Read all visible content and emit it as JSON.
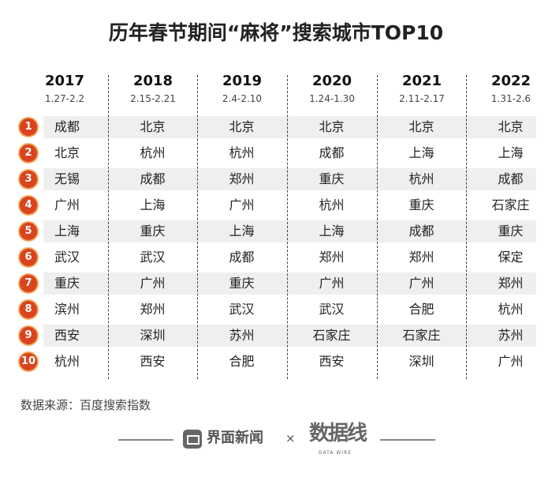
{
  "title": "历年春节期间“麻将”搜索城市TOP10",
  "columns": [
    {
      "year": "2017",
      "dates": "1.27-2.2",
      "cities": [
        "成都",
        "北京",
        "无锡",
        "广州",
        "上海",
        "武汉",
        "重庆",
        "滨州",
        "西安",
        "杭州"
      ]
    },
    {
      "year": "2018",
      "dates": "2.15-2.21",
      "cities": [
        "北京",
        "杭州",
        "成都",
        "上海",
        "重庆",
        "武汉",
        "广州",
        "郑州",
        "深圳",
        "西安"
      ]
    },
    {
      "year": "2019",
      "dates": "2.4-2.10",
      "cities": [
        "北京",
        "杭州",
        "郑州",
        "广州",
        "上海",
        "成都",
        "重庆",
        "武汉",
        "苏州",
        "合肥"
      ]
    },
    {
      "year": "2020",
      "dates": "1.24-1.30",
      "cities": [
        "北京",
        "成都",
        "重庆",
        "杭州",
        "上海",
        "郑州",
        "广州",
        "武汉",
        "石家庄",
        "西安"
      ]
    },
    {
      "year": "2021",
      "dates": "2.11-2.17",
      "cities": [
        "北京",
        "上海",
        "杭州",
        "重庆",
        "成都",
        "郑州",
        "广州",
        "合肥",
        "石家庄",
        "深圳"
      ]
    },
    {
      "year": "2022",
      "dates": "1.31-2.6",
      "cities": [
        "北京",
        "上海",
        "成都",
        "石家庄",
        "重庆",
        "保定",
        "郑州",
        "杭州",
        "苏州",
        "广州"
      ]
    }
  ],
  "ranks": [
    "1",
    "2",
    "3",
    "4",
    "5",
    "6",
    "7",
    "8",
    "9",
    "10"
  ],
  "source": "数据来源：百度搜索指数",
  "footer": {
    "brand": "界面新闻",
    "times": "×",
    "partner": "数据线",
    "partner_sub": "DATA WIRE"
  },
  "colors": {
    "rank_badge": "#d9441f",
    "stripe": "#efefef"
  }
}
